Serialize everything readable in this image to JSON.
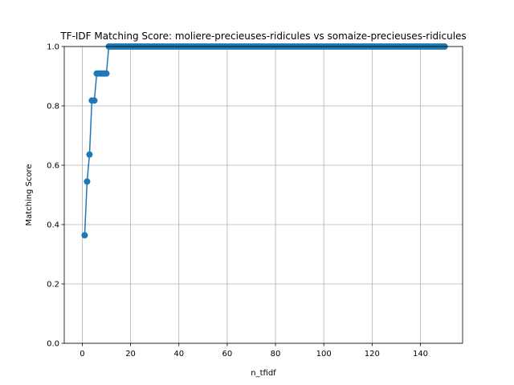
{
  "chart_data": {
    "type": "line",
    "title": "TF-IDF Matching Score: moliere-precieuses-ridicules vs somaize-precieuses-ridicules",
    "xlabel": "n_tfidf",
    "ylabel": "Matching Score",
    "xlim": [
      -7.45,
      157.45
    ],
    "ylim": [
      0.0,
      1.0
    ],
    "xticks": [
      0,
      20,
      40,
      60,
      80,
      100,
      120,
      140
    ],
    "yticks": [
      0.0,
      0.2,
      0.4,
      0.6,
      0.8,
      1.0
    ],
    "grid": true,
    "marker": "circle",
    "color": "#1f77b4",
    "series": [
      {
        "x": [
          1,
          2,
          3,
          4,
          5,
          6,
          7,
          8,
          9,
          10,
          11,
          12,
          13,
          14,
          15,
          16,
          17,
          18,
          19,
          20,
          21,
          22,
          23,
          24,
          25,
          26,
          27,
          28,
          29,
          30,
          31,
          32,
          33,
          34,
          35,
          36,
          37,
          38,
          39,
          40,
          41,
          42,
          43,
          44,
          45,
          46,
          47,
          48,
          49,
          50,
          51,
          52,
          53,
          54,
          55,
          56,
          57,
          58,
          59,
          60,
          61,
          62,
          63,
          64,
          65,
          66,
          67,
          68,
          69,
          70,
          71,
          72,
          73,
          74,
          75,
          76,
          77,
          78,
          79,
          80,
          81,
          82,
          83,
          84,
          85,
          86,
          87,
          88,
          89,
          90,
          91,
          92,
          93,
          94,
          95,
          96,
          97,
          98,
          99,
          100,
          101,
          102,
          103,
          104,
          105,
          106,
          107,
          108,
          109,
          110,
          111,
          112,
          113,
          114,
          115,
          116,
          117,
          118,
          119,
          120,
          121,
          122,
          123,
          124,
          125,
          126,
          127,
          128,
          129,
          130,
          131,
          132,
          133,
          134,
          135,
          136,
          137,
          138,
          139,
          140,
          141,
          142,
          143,
          144,
          145,
          146,
          147,
          148,
          149,
          150
        ],
        "values": [
          0.364,
          0.545,
          0.636,
          0.818,
          0.818,
          0.909,
          0.909,
          0.909,
          0.909,
          0.909,
          1,
          1,
          1,
          1,
          1,
          1,
          1,
          1,
          1,
          1,
          1,
          1,
          1,
          1,
          1,
          1,
          1,
          1,
          1,
          1,
          1,
          1,
          1,
          1,
          1,
          1,
          1,
          1,
          1,
          1,
          1,
          1,
          1,
          1,
          1,
          1,
          1,
          1,
          1,
          1,
          1,
          1,
          1,
          1,
          1,
          1,
          1,
          1,
          1,
          1,
          1,
          1,
          1,
          1,
          1,
          1,
          1,
          1,
          1,
          1,
          1,
          1,
          1,
          1,
          1,
          1,
          1,
          1,
          1,
          1,
          1,
          1,
          1,
          1,
          1,
          1,
          1,
          1,
          1,
          1,
          1,
          1,
          1,
          1,
          1,
          1,
          1,
          1,
          1,
          1,
          1,
          1,
          1,
          1,
          1,
          1,
          1,
          1,
          1,
          1,
          1,
          1,
          1,
          1,
          1,
          1,
          1,
          1,
          1,
          1,
          1,
          1,
          1,
          1,
          1,
          1,
          1,
          1,
          1,
          1,
          1,
          1,
          1,
          1,
          1,
          1,
          1,
          1,
          1,
          1,
          1,
          1,
          1,
          1,
          1,
          1,
          1,
          1,
          1,
          1
        ]
      }
    ]
  }
}
